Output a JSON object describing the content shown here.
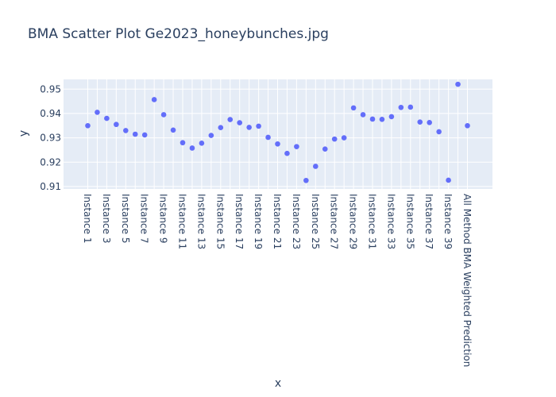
{
  "chart_data": {
    "type": "scatter",
    "title": "BMA Scatter Plot Ge2023_honeybunches.jpg",
    "xlabel": "x",
    "ylabel": "y",
    "ylim": [
      0.909,
      0.954
    ],
    "yticks": [
      "0.91",
      "0.92",
      "0.93",
      "0.94",
      "0.95"
    ],
    "marker_color": "#636efa",
    "plot_bg": "#e5ecf6",
    "categories": [
      "Instance 1",
      "Instance 2",
      "Instance 3",
      "Instance 4",
      "Instance 5",
      "Instance 6",
      "Instance 7",
      "Instance 8",
      "Instance 9",
      "Instance 10",
      "Instance 11",
      "Instance 12",
      "Instance 13",
      "Instance 14",
      "Instance 15",
      "Instance 16",
      "Instance 17",
      "Instance 18",
      "Instance 19",
      "Instance 20",
      "Instance 21",
      "Instance 22",
      "Instance 23",
      "Instance 24",
      "Instance 25",
      "Instance 26",
      "Instance 27",
      "Instance 28",
      "Instance 29",
      "Instance 30",
      "Instance 31",
      "Instance 32",
      "Instance 33",
      "Instance 34",
      "Instance 35",
      "Instance 36",
      "Instance 37",
      "Instance 38",
      "Instance 39",
      "Instance 40",
      "All Method BMA Weighted Prediction"
    ],
    "shown_tick_labels": [
      "Instance 1",
      "Instance 3",
      "Instance 5",
      "Instance 7",
      "Instance 9",
      "Instance 11",
      "Instance 13",
      "Instance 15",
      "Instance 17",
      "Instance 19",
      "Instance 21",
      "Instance 23",
      "Instance 25",
      "Instance 27",
      "Instance 29",
      "Instance 31",
      "Instance 33",
      "Instance 35",
      "Instance 37",
      "Instance 39",
      "All Method BMA Weighted Prediction"
    ],
    "values": [
      0.935,
      0.9405,
      0.938,
      0.9355,
      0.933,
      0.9315,
      0.9312,
      0.9457,
      0.9395,
      0.9332,
      0.928,
      0.9258,
      0.9278,
      0.931,
      0.9342,
      0.9375,
      0.9362,
      0.9343,
      0.9348,
      0.9302,
      0.9275,
      0.9236,
      0.9264,
      0.9125,
      0.9183,
      0.9254,
      0.9295,
      0.93,
      0.9423,
      0.9395,
      0.9377,
      0.9376,
      0.9387,
      0.9425,
      0.9426,
      0.9365,
      0.9363,
      0.9325,
      0.9126,
      0.952,
      0.935
    ]
  }
}
